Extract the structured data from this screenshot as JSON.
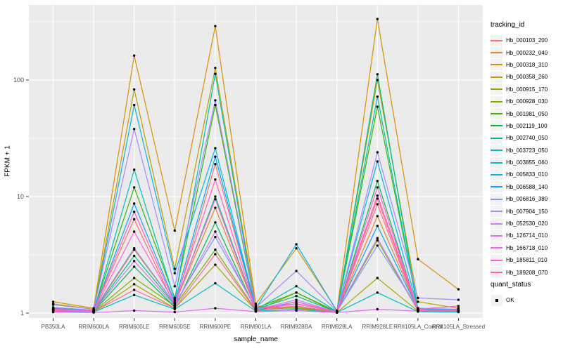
{
  "figure": {
    "background": "#FFFFFF",
    "panel_background": "#EBEBEB",
    "gridline_color": "#FFFFFF",
    "tick_label_color": "#4D4D4D",
    "tick_mark_color": "#333333",
    "axis_title_color": "#000000",
    "point_color": "#000000",
    "legend_key_background": "#F2F2F2"
  },
  "axes": {
    "x_title": "sample_name",
    "y_title": "FPKM + 1"
  },
  "legends": {
    "tracking": {
      "title": "tracking_id"
    },
    "quant": {
      "title": "quant_status",
      "items": [
        {
          "label": "OK",
          "symbol": "black-square"
        }
      ]
    }
  },
  "chart_data": {
    "type": "line",
    "title": "",
    "xlabel": "sample_name",
    "ylabel": "FPKM + 1",
    "y_scale": "log10",
    "ylim": [
      0.93,
      440
    ],
    "y_major_ticks": [
      1,
      10,
      100
    ],
    "y_minor_ticks": [
      3.162,
      31.62,
      316.2
    ],
    "grid": true,
    "legend_position": "right",
    "point_marker": "small black dot at every observation (quant_status = OK)",
    "categories": [
      "PB350LA",
      "RRIM600LA",
      "RRIM600LE",
      "RRIM600SE",
      "RRIM600PE",
      "RRIM901LA",
      "RRIM928BA",
      "RRIM928LA",
      "RRIM928LE",
      "RRII105LA_Control",
      "RRII105LA_Stressed"
    ],
    "series": [
      {
        "name": "Hb_000103_200",
        "color": "#F8766D",
        "values": [
          1.1,
          1.05,
          6.4,
          1.15,
          19,
          1.1,
          1.1,
          1.02,
          9.6,
          1.05,
          1.08
        ]
      },
      {
        "name": "Hb_000232_040",
        "color": "#EA8331",
        "values": [
          1.08,
          1.04,
          3.5,
          1.2,
          8.0,
          1.08,
          1.15,
          1.02,
          6.8,
          1.08,
          1.05
        ]
      },
      {
        "name": "Hb_000318_310",
        "color": "#D89000",
        "values": [
          1.25,
          1.1,
          162,
          5.1,
          290,
          1.2,
          3.6,
          1.05,
          334,
          2.9,
          1.6
        ]
      },
      {
        "name": "Hb_000358_260",
        "color": "#C09B00",
        "values": [
          1.2,
          1.08,
          83,
          2.4,
          127,
          1.15,
          1.1,
          1.03,
          100,
          1.25,
          1.1
        ]
      },
      {
        "name": "Hb_000915_170",
        "color": "#A3A500",
        "values": [
          1.05,
          1.02,
          1.77,
          1.1,
          2.6,
          1.05,
          1.5,
          1.01,
          2.0,
          1.04,
          1.03
        ]
      },
      {
        "name": "Hb_000928_030",
        "color": "#7CAE00",
        "values": [
          1.06,
          1.03,
          2.0,
          1.15,
          3.5,
          1.06,
          1.12,
          1.02,
          4.2,
          1.05,
          1.04
        ]
      },
      {
        "name": "Hb_001981_050",
        "color": "#39B600",
        "values": [
          1.08,
          1.05,
          12,
          1.35,
          61,
          1.1,
          1.5,
          1.03,
          59,
          1.1,
          1.06
        ]
      },
      {
        "name": "Hb_002119_100",
        "color": "#00BB4E",
        "values": [
          1.05,
          1.03,
          2.5,
          1.12,
          6.0,
          1.05,
          1.25,
          1.02,
          13.6,
          1.06,
          1.04
        ]
      },
      {
        "name": "Hb_002740_050",
        "color": "#00C087",
        "values": [
          1.07,
          1.04,
          3.1,
          1.18,
          10,
          1.08,
          1.4,
          1.02,
          112,
          1.08,
          1.05
        ]
      },
      {
        "name": "Hb_003723_050",
        "color": "#00C0B2",
        "values": [
          1.06,
          1.04,
          17,
          1.3,
          113,
          1.07,
          1.7,
          1.03,
          72,
          1.07,
          1.05
        ]
      },
      {
        "name": "Hb_003855_060",
        "color": "#00BFC4",
        "values": [
          1.04,
          1.02,
          1.43,
          1.08,
          1.8,
          1.04,
          1.08,
          1.01,
          1.5,
          1.03,
          1.02
        ]
      },
      {
        "name": "Hb_005833_010",
        "color": "#00B5EC",
        "values": [
          1.1,
          1.05,
          61,
          2.2,
          26,
          1.1,
          3.9,
          1.04,
          20,
          1.1,
          1.06
        ]
      },
      {
        "name": "Hb_006588_140",
        "color": "#00A9FF",
        "values": [
          1.08,
          1.04,
          8.7,
          1.25,
          22,
          1.08,
          1.2,
          1.03,
          5.6,
          1.08,
          1.05
        ]
      },
      {
        "name": "Hb_006816_380",
        "color": "#7F96FF",
        "values": [
          1.12,
          1.06,
          3.6,
          1.2,
          4.5,
          1.1,
          1.2,
          1.03,
          3.8,
          1.1,
          1.08
        ]
      },
      {
        "name": "Hb_007904_150",
        "color": "#A58AFF",
        "values": [
          1.18,
          1.08,
          38,
          1.7,
          67,
          1.12,
          2.3,
          1.04,
          24,
          1.35,
          1.3
        ]
      },
      {
        "name": "Hb_052530_020",
        "color": "#C77CFF",
        "values": [
          1.07,
          1.04,
          2.8,
          1.15,
          5.0,
          1.07,
          1.3,
          1.02,
          4.4,
          1.06,
          1.05
        ]
      },
      {
        "name": "Hb_126714_010",
        "color": "#E76BF3",
        "values": [
          1.02,
          1.01,
          1.05,
          1.02,
          1.1,
          1.03,
          1.05,
          1.01,
          1.08,
          1.04,
          1.06
        ]
      },
      {
        "name": "Hb_166718_010",
        "color": "#FA62DB",
        "values": [
          1.06,
          1.04,
          5.0,
          1.2,
          9.5,
          1.07,
          1.25,
          1.02,
          12,
          1.07,
          1.05
        ]
      },
      {
        "name": "Hb_185811_010",
        "color": "#FF61C3",
        "values": [
          1.08,
          1.05,
          7.4,
          1.22,
          14,
          1.08,
          1.2,
          1.03,
          10.2,
          1.08,
          1.15
        ]
      },
      {
        "name": "Hb_189208_070",
        "color": "#FF689E",
        "values": [
          1.05,
          1.03,
          1.58,
          1.1,
          3.2,
          1.05,
          1.15,
          1.02,
          8.6,
          1.05,
          1.04
        ]
      }
    ]
  }
}
